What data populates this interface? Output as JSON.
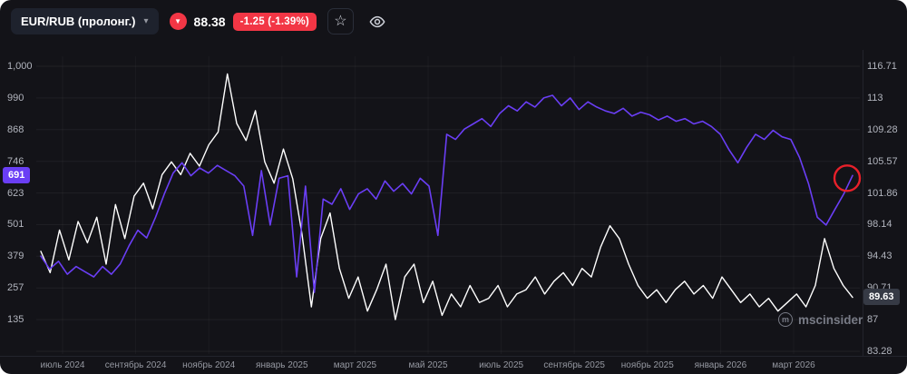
{
  "header": {
    "symbol": "EUR/RUB (пролонг.)",
    "price": "88.38",
    "change": "-1.25 (-1.39%)",
    "icons": {
      "dropdown": "chevron-down-icon",
      "direction": "arrow-down-circle-icon",
      "favorite": "star-icon",
      "visibility": "eye-icon"
    }
  },
  "watermark": {
    "text": "mscinsider"
  },
  "colors": {
    "background": "#131318",
    "panel": "#1e222d",
    "red": "#f23645",
    "white_series": "#ffffff",
    "purple_series": "#6a3ef5",
    "axis_text": "#b2b5be",
    "muted_text": "#9598a1",
    "grid": "rgba(255,255,255,0.06)",
    "grid_v": "rgba(255,255,255,0.035)",
    "right_badge_bg": "#363a45",
    "annotation_red": "#e8202a",
    "watermark": "#787b86"
  },
  "chart_data": {
    "type": "line",
    "title": "EUR/RUB (пролонг.)",
    "x_tick_labels": [
      "июль 2024",
      "сентябрь 2024",
      "ноябрь 2024",
      "январь 2025",
      "март 2025",
      "май 2025",
      "июль 2025",
      "сентябрь 2025",
      "ноябрь 2025",
      "январь 2026",
      "март 2026"
    ],
    "x_range": [
      "июль 2024",
      "март 2026"
    ],
    "right_axis": {
      "min": 83.28,
      "max": 116.71,
      "tick_labels": [
        "116.71",
        "113",
        "109.28",
        "105.57",
        "101.86",
        "98.14",
        "94.43",
        "90.71",
        "87",
        "83.28"
      ],
      "badge": "89.63"
    },
    "left_axis": {
      "tick_labels": [
        "1,000",
        "990",
        "868",
        "746",
        "623",
        "501",
        "379",
        "257",
        "135"
      ],
      "badge": "691"
    },
    "series": [
      {
        "name": "eur-rub-right-scale",
        "axis": "right",
        "color": "#ffffff",
        "width": 1.4,
        "last_value": 89.63,
        "values": [
          95.0,
          92.5,
          97.5,
          94.0,
          98.5,
          96.0,
          99.0,
          93.5,
          100.5,
          96.5,
          101.5,
          103.0,
          100.0,
          104.0,
          105.5,
          104.0,
          106.5,
          105.0,
          107.5,
          109.0,
          115.8,
          110.0,
          108.0,
          111.5,
          105.5,
          103.0,
          107.0,
          103.5,
          97.0,
          88.5,
          96.5,
          99.5,
          93.0,
          89.5,
          92.0,
          88.0,
          90.5,
          93.5,
          87.0,
          92.0,
          93.5,
          89.0,
          91.5,
          87.5,
          90.0,
          88.5,
          91.0,
          89.0,
          89.5,
          91.0,
          88.5,
          90.0,
          90.5,
          92.0,
          90.0,
          91.5,
          92.5,
          91.0,
          93.0,
          92.0,
          95.5,
          98.0,
          96.5,
          93.5,
          91.0,
          89.5,
          90.5,
          89.0,
          90.5,
          91.5,
          90.0,
          91.0,
          89.5,
          92.0,
          90.5,
          89.0,
          90.0,
          88.5,
          89.5,
          88.0,
          89.0,
          90.0,
          88.5,
          91.0,
          96.5,
          93.0,
          91.0,
          89.6
        ]
      },
      {
        "name": "compare-left-scale",
        "axis": "left",
        "color": "#6a3ef5",
        "width": 1.6,
        "last_value": 691,
        "values": [
          380,
          330,
          360,
          310,
          340,
          320,
          300,
          340,
          310,
          350,
          420,
          480,
          450,
          530,
          620,
          700,
          740,
          690,
          720,
          700,
          730,
          710,
          690,
          650,
          460,
          710,
          500,
          680,
          690,
          300,
          650,
          240,
          600,
          580,
          640,
          560,
          620,
          640,
          600,
          670,
          630,
          660,
          620,
          680,
          650,
          460,
          850,
          830,
          870,
          890,
          910,
          880,
          930,
          960,
          940,
          975,
          955,
          990,
          1000,
          960,
          990,
          945,
          975,
          955,
          940,
          930,
          950,
          920,
          935,
          925,
          905,
          920,
          900,
          910,
          890,
          900,
          880,
          850,
          790,
          740,
          800,
          850,
          830,
          865,
          840,
          830,
          760,
          660,
          530,
          500,
          560,
          620,
          691
        ]
      }
    ],
    "annotation": {
      "type": "circle",
      "around": "end-of-purple-series",
      "r": 14,
      "color": "#e8202a"
    },
    "legend_position": "none",
    "grid": "horizontal"
  }
}
